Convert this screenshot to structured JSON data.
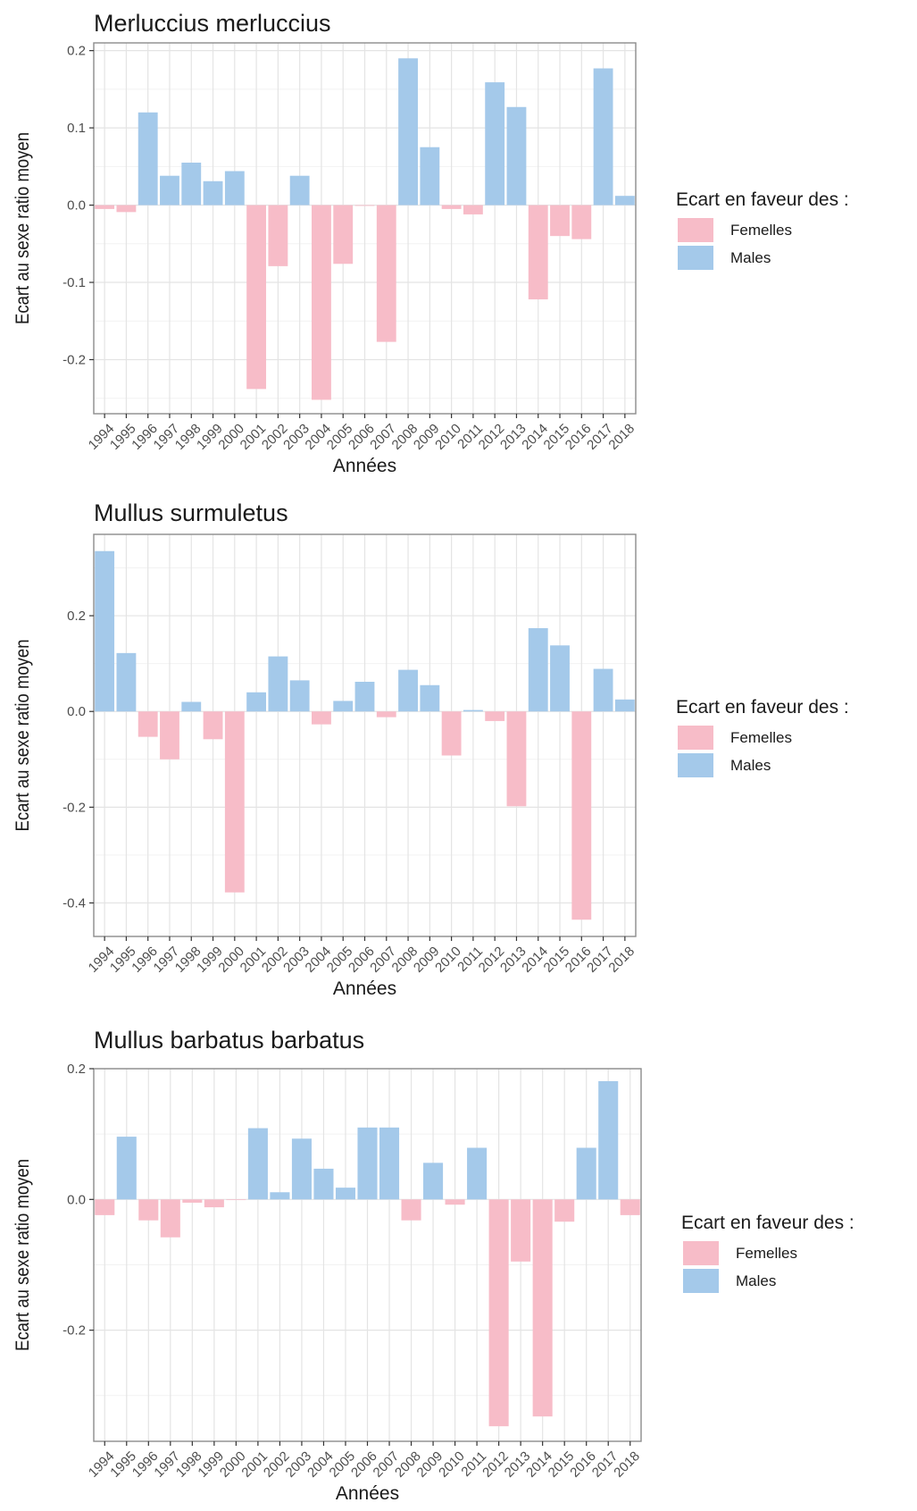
{
  "colors": {
    "femelles": "#f7bcc8",
    "males": "#a4c9ea",
    "grid_major": "#e4e4e4",
    "grid_minor": "#f2f2f2",
    "panel_border": "#8c8c8c",
    "text": "#1a1a1a",
    "tick_text": "#4d4d4d"
  },
  "chart_data": [
    {
      "type": "bar",
      "title": "Merluccius merluccius",
      "xlabel": "Années",
      "ylabel": "Ecart au sexe ratio moyen",
      "categories": [
        "1994",
        "1995",
        "1996",
        "1997",
        "1998",
        "1999",
        "2000",
        "2001",
        "2002",
        "2003",
        "2004",
        "2005",
        "2006",
        "2007",
        "2008",
        "2009",
        "2010",
        "2011",
        "2012",
        "2013",
        "2014",
        "2015",
        "2016",
        "2017",
        "2018"
      ],
      "values": [
        -0.005,
        -0.009,
        0.12,
        0.038,
        0.055,
        0.031,
        0.044,
        -0.238,
        -0.079,
        0.038,
        -0.252,
        -0.076,
        -0.001,
        -0.177,
        0.19,
        0.075,
        -0.005,
        -0.012,
        0.159,
        0.127,
        -0.122,
        -0.04,
        -0.044,
        0.177,
        0.012
      ],
      "ylim": [
        -0.27,
        0.21
      ],
      "yticks": [
        -0.2,
        -0.1,
        0.0,
        0.1,
        0.2
      ],
      "ytick_labels": [
        "-0.2",
        "-0.1",
        "0.0",
        "0.1",
        "0.2"
      ],
      "legend_title": "Ecart en faveur des :",
      "legend": [
        "Femelles",
        "Males"
      ],
      "legend_position": "right",
      "grid": true
    },
    {
      "type": "bar",
      "title": "Mullus surmuletus",
      "xlabel": "Années",
      "ylabel": "Ecart au sexe ratio moyen",
      "categories": [
        "1994",
        "1995",
        "1996",
        "1997",
        "1998",
        "1999",
        "2000",
        "2001",
        "2002",
        "2003",
        "2004",
        "2005",
        "2006",
        "2007",
        "2008",
        "2009",
        "2010",
        "2011",
        "2012",
        "2013",
        "2014",
        "2015",
        "2016",
        "2017",
        "2018"
      ],
      "values": [
        0.335,
        0.122,
        -0.053,
        -0.1,
        0.02,
        -0.058,
        -0.378,
        0.04,
        0.115,
        0.065,
        -0.027,
        0.022,
        0.062,
        -0.012,
        0.087,
        0.055,
        -0.092,
        0.003,
        -0.02,
        -0.198,
        0.174,
        0.138,
        -0.435,
        0.089,
        0.025
      ],
      "ylim": [
        -0.47,
        0.37
      ],
      "yticks": [
        -0.4,
        -0.2,
        0.0,
        0.2
      ],
      "ytick_labels": [
        "-0.4",
        "-0.2",
        "0.0",
        "0.2"
      ],
      "legend_title": "Ecart en faveur des :",
      "legend": [
        "Femelles",
        "Males"
      ],
      "legend_position": "right",
      "grid": true
    },
    {
      "type": "bar",
      "title": "Mullus barbatus barbatus",
      "xlabel": "Années",
      "ylabel": "Ecart au sexe ratio moyen",
      "categories": [
        "1994",
        "1995",
        "1996",
        "1997",
        "1998",
        "1999",
        "2000",
        "2001",
        "2002",
        "2003",
        "2004",
        "2005",
        "2006",
        "2007",
        "2008",
        "2009",
        "2010",
        "2011",
        "2012",
        "2013",
        "2014",
        "2015",
        "2016",
        "2017",
        "2018"
      ],
      "values": [
        -0.024,
        0.096,
        -0.032,
        -0.058,
        -0.005,
        -0.012,
        -0.001,
        0.109,
        0.011,
        0.093,
        0.047,
        0.018,
        0.11,
        0.11,
        -0.032,
        0.056,
        -0.008,
        0.079,
        -0.347,
        -0.095,
        -0.332,
        -0.034,
        0.079,
        0.181,
        -0.024
      ],
      "ylim": [
        -0.37,
        0.2
      ],
      "yticks": [
        -0.2,
        0.0,
        0.2
      ],
      "ytick_labels": [
        "-0.2",
        "0.0",
        "0.2"
      ],
      "legend_title": "Ecart en faveur des :",
      "legend": [
        "Femelles",
        "Males"
      ],
      "legend_position": "right",
      "grid": true
    }
  ]
}
